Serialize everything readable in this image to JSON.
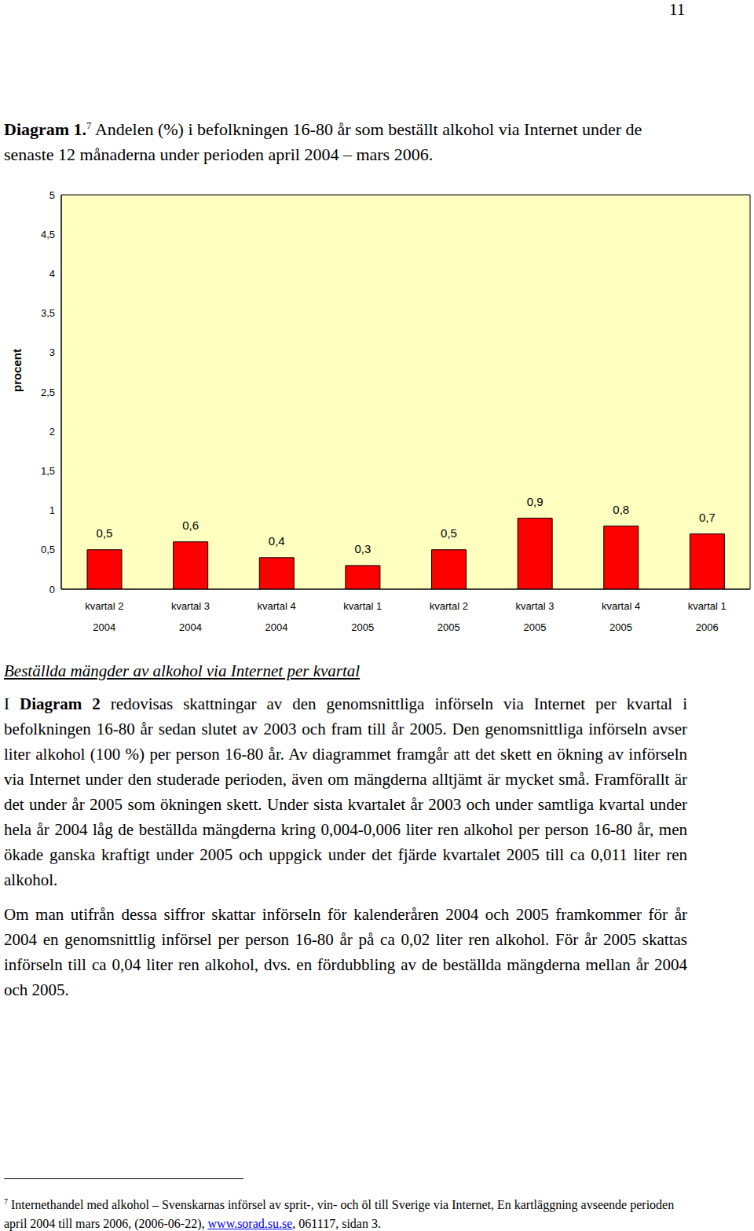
{
  "page_number": "11",
  "caption": {
    "label": "Diagram 1.",
    "footnote_ref": "7",
    "text": "Andelen (%) i befolkningen 16-80 år som beställt alkohol via Internet under de senaste 12 månaderna under perioden april 2004 – mars 2006."
  },
  "chart_data": {
    "type": "bar",
    "ylabel": "procent",
    "categories": [
      "kvartal 2 2004",
      "kvartal 3 2004",
      "kvartal 4 2004",
      "kvartal 1 2005",
      "kvartal 2 2005",
      "kvartal 3 2005",
      "kvartal 4 2005",
      "kvartal 1 2006"
    ],
    "values": [
      0.5,
      0.6,
      0.4,
      0.3,
      0.5,
      0.9,
      0.8,
      0.7
    ],
    "value_labels": [
      "0,5",
      "0,6",
      "0,4",
      "0,3",
      "0,5",
      "0,9",
      "0,8",
      "0,7"
    ],
    "data_labels": true,
    "color": "#ff0000",
    "ylim": [
      0,
      5
    ],
    "yticks": [
      0,
      {
        "value": 0.5,
        "label": "0,5"
      },
      1,
      {
        "value": 1.5,
        "label": "1,5"
      },
      2,
      {
        "value": 2.5,
        "label": "2,5"
      },
      3,
      {
        "value": 3.5,
        "label": "3,5"
      },
      4,
      {
        "value": 4.5,
        "label": "4,5"
      },
      5
    ],
    "grid": false
  },
  "section": {
    "heading": "Beställda mängder av alkohol via Internet per kvartal",
    "paragraphs": [
      [
        {
          "text": "I "
        },
        {
          "text": "Diagram 2",
          "bold": true
        },
        {
          "text": " redovisas skattningar av den genomsnittliga införseln via Internet per kvartal i befolkningen 16-80 år sedan slutet av 2003 och fram till år 2005. Den genomsnittliga införseln avser liter alkohol (100 %) per person 16-80 år. Av diagrammet framgår att det skett en ökning av införseln via Internet under den studerade perioden, även om mängderna alltjämt är mycket små. Framförallt är det under år 2005 som ökningen skett. Under sista kvartalet år 2003 och under samtliga kvartal under hela år 2004 låg de beställda mängderna kring 0,004-0,006 liter ren alkohol per person 16-80 år, men ökade ganska kraftigt under 2005 och uppgick under det fjärde kvartalet 2005 till ca 0,011 liter ren alkohol."
        }
      ],
      [
        {
          "text": "Om man utifrån dessa siffror skattar införseln för kalenderåren 2004 och 2005 framkommer för år 2004 en genomsnittlig införsel per person 16-80 år på ca 0,02 liter ren alkohol. För år 2005 skattas införseln till ca 0,04 liter ren alkohol, dvs. en fördubbling av de beställda mängderna mellan år 2004 och 2005."
        }
      ]
    ]
  },
  "footnote": {
    "marker": "7",
    "segments": [
      {
        "text": "Internethandel med alkohol – Svenskarnas införsel av sprit-, vin- och öl till Sverige via Internet, En kartläggning avseende perioden april 2004 till mars 2006, (2006-06-22), "
      },
      {
        "text": "www.sorad.su.se",
        "link": true
      },
      {
        "text": ", 061117, sidan 3."
      }
    ]
  }
}
